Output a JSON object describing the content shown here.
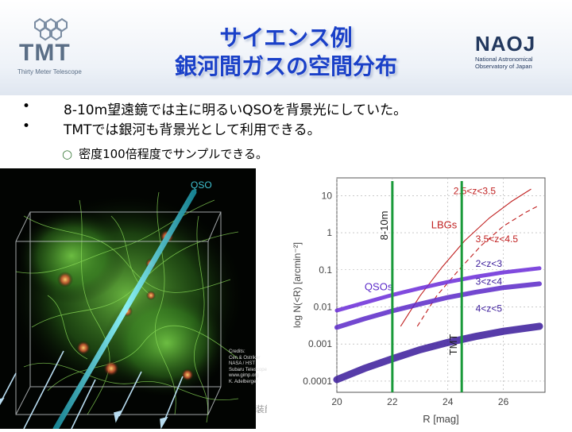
{
  "header": {
    "title_line1": "サイエンス例",
    "title_line2": "銀河間ガスの空間分布",
    "tmt_logo_text": "TMT",
    "tmt_logo_sub": "Thirty Meter Telescope",
    "naoj_logo_text": "NAOJ",
    "naoj_logo_sub_1": "National Astronomical",
    "naoj_logo_sub_2": "Observatory of Japan"
  },
  "bullets": [
    {
      "marker": "•",
      "text": "8-10m望遠鏡では主に明るいQSOを背景光にしていた。"
    },
    {
      "marker": "•",
      "text": "TMTでは銀河も背景光として利用できる。"
    }
  ],
  "sub_bullet": {
    "marker": "○",
    "text": "密度100倍程度でサンプルできる。"
  },
  "simulation": {
    "qso_label": "QSO",
    "credits": [
      "Credits:",
      "Cen & Ostriker",
      "NASA / HST",
      "Subaru Telescope",
      "www.gimp.org",
      "K. Adelberger"
    ]
  },
  "footer_fragment": "装飾",
  "chart_data": {
    "type": "line",
    "xlabel": "R [mag]",
    "ylabel": "log N(<R) [arcmin⁻²]",
    "xlim": [
      20,
      27.5
    ],
    "ylim": [
      5e-05,
      30
    ],
    "y_scale": "log",
    "xticks": [
      "20",
      "22",
      "24",
      "26"
    ],
    "yticks": [
      "0.0001",
      "0.001",
      "0.01",
      "0.1",
      "1",
      "10"
    ],
    "ytick_values": [
      0.0001,
      0.001,
      0.01,
      0.1,
      1,
      10
    ],
    "grid": true,
    "group_labels": [
      "LBGs",
      "QSOs"
    ],
    "vlines": [
      {
        "label": "8-10m",
        "x": 22.0,
        "color": "#1a9a3a"
      },
      {
        "label": "TMT",
        "x": 24.5,
        "color": "#1a9a3a"
      }
    ],
    "series": [
      {
        "name": "2.5<z<3.5",
        "group": "LBGs",
        "color": "#c02020",
        "dash": "solid",
        "x": [
          22.3,
          23.0,
          23.8,
          24.6,
          25.5,
          26.3,
          27.0
        ],
        "y": [
          0.003,
          0.02,
          0.12,
          0.6,
          2.5,
          7,
          15
        ]
      },
      {
        "name": "3.5<z<4.5",
        "group": "LBGs",
        "color": "#c02020",
        "dash": "dashed",
        "x": [
          22.9,
          23.6,
          24.4,
          25.2,
          26.0,
          26.8,
          27.3
        ],
        "y": [
          0.003,
          0.02,
          0.1,
          0.45,
          1.5,
          3.5,
          5.5
        ]
      },
      {
        "name": "2<z<3",
        "group": "QSOs",
        "color": "#6a2ad8",
        "dash": "solid",
        "x": [
          20.0,
          21.0,
          22.0,
          23.0,
          24.0,
          25.0,
          26.0,
          27.3
        ],
        "y": [
          0.008,
          0.013,
          0.021,
          0.032,
          0.047,
          0.065,
          0.085,
          0.11
        ]
      },
      {
        "name": "3<z<4",
        "group": "QSOs",
        "color": "#5a28c8",
        "dash": "solid",
        "x": [
          20.0,
          21.0,
          22.0,
          23.0,
          24.0,
          25.0,
          26.0,
          27.3
        ],
        "y": [
          0.0028,
          0.0048,
          0.0078,
          0.012,
          0.018,
          0.025,
          0.033,
          0.042
        ]
      },
      {
        "name": "4<z<5",
        "group": "QSOs",
        "color": "#3a1a9a",
        "dash": "solid",
        "x": [
          20.0,
          21.0,
          22.0,
          23.0,
          24.0,
          25.0,
          26.0,
          27.3
        ],
        "y": [
          0.00011,
          0.00022,
          0.0004,
          0.0007,
          0.0011,
          0.0016,
          0.0022,
          0.003
        ]
      }
    ]
  }
}
